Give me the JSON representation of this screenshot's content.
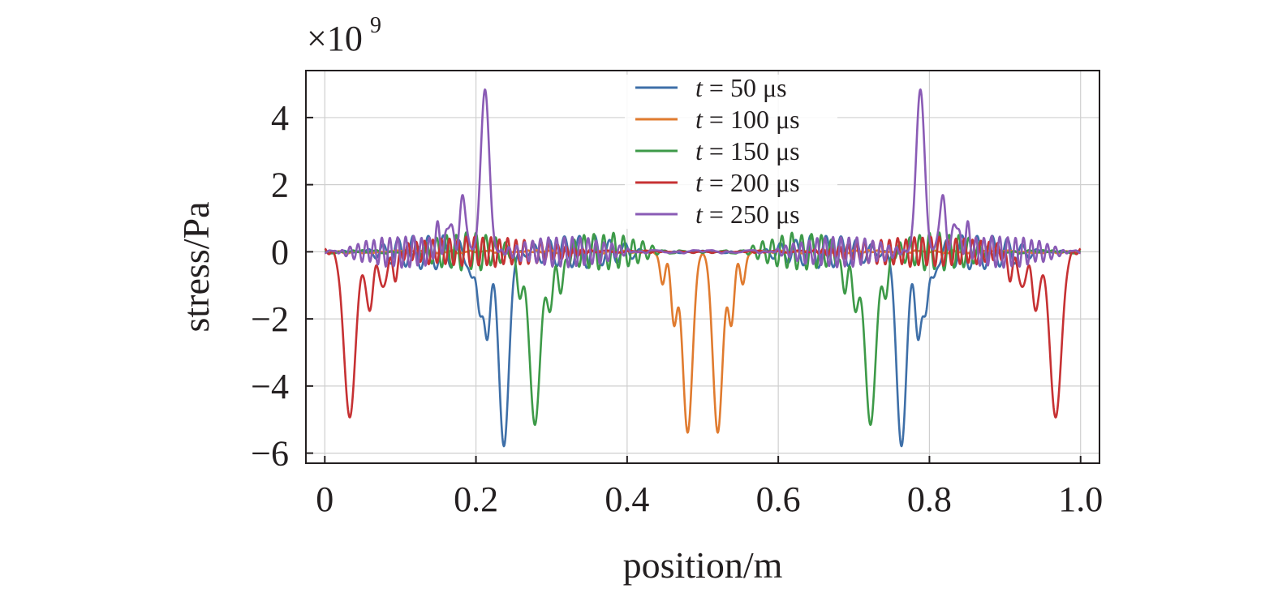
{
  "chart_data": {
    "type": "line",
    "title": "",
    "xlabel": "position/m",
    "ylabel": "stress/Pa",
    "y_multiplier": {
      "base": "×10",
      "exponent": "9"
    },
    "xlim": [
      -0.025,
      1.025
    ],
    "ylim": [
      -6.3,
      5.4
    ],
    "grid": true,
    "legend_position": "top-center",
    "x_ticks": [
      0,
      0.2,
      0.4,
      0.6,
      0.8,
      1.0
    ],
    "x_tick_labels": [
      "0",
      "0.2",
      "0.4",
      "0.6",
      "0.8",
      "1.0"
    ],
    "y_ticks": [
      4,
      2,
      0,
      -2,
      -4,
      -6
    ],
    "y_tick_labels": [
      "4",
      "2",
      "0",
      "−2",
      "−4",
      "−6"
    ],
    "series": [
      {
        "name": "t = 50 μs",
        "t_label": "t",
        "rest_label": " = 50 μs",
        "color": "#3e6fa8",
        "wave_center": 0.237,
        "pulse": [
          [
            0.237,
            -5.8,
            0.0065
          ],
          [
            0.215,
            -2.6,
            0.004
          ],
          [
            0.205,
            -1.6,
            0.004
          ],
          [
            0.195,
            -0.9,
            0.0035
          ]
        ],
        "ripple": {
          "extent": 0.19,
          "amp": 0.5,
          "period": 0.02
        },
        "noise": 0.04
      },
      {
        "name": "t = 100 μs",
        "t_label": "t",
        "rest_label": " = 100 μs",
        "color": "#e07b2f",
        "wave_center": 0.0,
        "pulse": [
          [
            0.48,
            -5.35,
            0.0065
          ],
          [
            0.523,
            -5.35,
            0.0065
          ],
          [
            0.462,
            -2.1,
            0.004
          ],
          [
            0.545,
            -2.1,
            0.004
          ],
          [
            0.447,
            -1.0,
            0.0035
          ],
          [
            0.56,
            -1.0,
            0.0035
          ]
        ],
        "ripple": {
          "extent": 0.0,
          "amp": 0.0,
          "period": 0.02
        },
        "noise": 0.05
      },
      {
        "name": "t = 150 μs",
        "t_label": "t",
        "rest_label": " = 150 μs",
        "color": "#3d9a48",
        "wave_center": 0.278,
        "pulse": [
          [
            0.278,
            -5.2,
            0.007
          ],
          [
            0.258,
            -1.2,
            0.004
          ],
          [
            0.298,
            -1.6,
            0.0045
          ],
          [
            0.313,
            -1.1,
            0.004
          ]
        ],
        "ripple": {
          "extent": 0.17,
          "amp": 0.55,
          "period": 0.013
        },
        "noise": 0.05
      },
      {
        "name": "t = 200 μs",
        "t_label": "t",
        "rest_label": " = 200 μs",
        "color": "#c63133",
        "wave_center": 0.033,
        "pulse": [
          [
            0.033,
            -4.95,
            0.0075
          ],
          [
            0.059,
            -1.7,
            0.005
          ],
          [
            0.077,
            -1.2,
            0.004
          ],
          [
            0.093,
            -0.7,
            0.004
          ]
        ],
        "ripple": {
          "extent": 0.33,
          "amp": 0.42,
          "period": 0.011
        },
        "noise": 0.04
      },
      {
        "name": "t = 250 μs",
        "t_label": "t",
        "rest_label": " = 250 μs",
        "color": "#8a5bb5",
        "wave_center": 0.212,
        "pulse": [
          [
            0.212,
            4.85,
            0.0055
          ],
          [
            0.183,
            1.65,
            0.004
          ],
          [
            0.165,
            1.0,
            0.0035
          ],
          [
            0.15,
            0.6,
            0.0035
          ]
        ],
        "ripple": {
          "extent": 0.2,
          "amp": 0.45,
          "period": 0.0105
        },
        "noise": 0.05
      }
    ]
  }
}
